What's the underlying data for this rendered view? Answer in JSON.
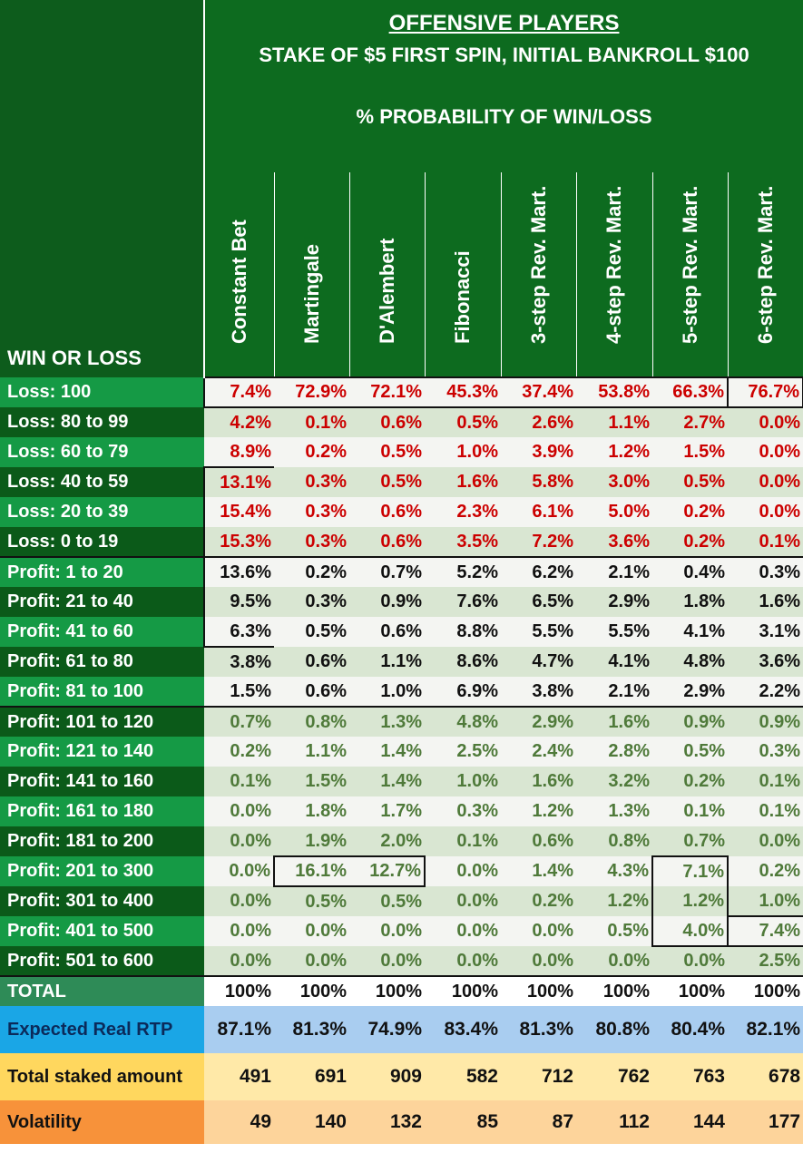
{
  "header": {
    "title": "OFFENSIVE PLAYERS",
    "subtitle": "STAKE OF $5 FIRST SPIN, INITIAL BANKROLL $100",
    "table_caption": "% PROBABILITY OF WIN/LOSS",
    "row_header": "WIN OR LOSS"
  },
  "columns": [
    "Constant Bet",
    "Martingale",
    "D'Alembert",
    "Fibonacci",
    "3-step Rev. Mart.",
    "4-step Rev. Mart.",
    "5-step Rev. Mart.",
    "6-step Rev. Mart."
  ],
  "rows": [
    {
      "label": "Loss: 100",
      "values": [
        "7.4%",
        "72.9%",
        "72.1%",
        "45.3%",
        "37.4%",
        "53.8%",
        "66.3%",
        "76.7%"
      ]
    },
    {
      "label": "Loss: 80 to 99",
      "values": [
        "4.2%",
        "0.1%",
        "0.6%",
        "0.5%",
        "2.6%",
        "1.1%",
        "2.7%",
        "0.0%"
      ]
    },
    {
      "label": "Loss: 60 to 79",
      "values": [
        "8.9%",
        "0.2%",
        "0.5%",
        "1.0%",
        "3.9%",
        "1.2%",
        "1.5%",
        "0.0%"
      ]
    },
    {
      "label": "Loss: 40 to 59",
      "values": [
        "13.1%",
        "0.3%",
        "0.5%",
        "1.6%",
        "5.8%",
        "3.0%",
        "0.5%",
        "0.0%"
      ]
    },
    {
      "label": "Loss: 20 to 39",
      "values": [
        "15.4%",
        "0.3%",
        "0.6%",
        "2.3%",
        "6.1%",
        "5.0%",
        "0.2%",
        "0.0%"
      ]
    },
    {
      "label": "Loss: 0 to 19",
      "values": [
        "15.3%",
        "0.3%",
        "0.6%",
        "3.5%",
        "7.2%",
        "3.6%",
        "0.2%",
        "0.1%"
      ]
    },
    {
      "label": "Profit: 1 to 20",
      "values": [
        "13.6%",
        "0.2%",
        "0.7%",
        "5.2%",
        "6.2%",
        "2.1%",
        "0.4%",
        "0.3%"
      ]
    },
    {
      "label": "Profit: 21 to 40",
      "values": [
        "9.5%",
        "0.3%",
        "0.9%",
        "7.6%",
        "6.5%",
        "2.9%",
        "1.8%",
        "1.6%"
      ]
    },
    {
      "label": "Profit: 41 to 60",
      "values": [
        "6.3%",
        "0.5%",
        "0.6%",
        "8.8%",
        "5.5%",
        "5.5%",
        "4.1%",
        "3.1%"
      ]
    },
    {
      "label": "Profit: 61 to 80",
      "values": [
        "3.8%",
        "0.6%",
        "1.1%",
        "8.6%",
        "4.7%",
        "4.1%",
        "4.8%",
        "3.6%"
      ]
    },
    {
      "label": "Profit: 81 to 100",
      "values": [
        "1.5%",
        "0.6%",
        "1.0%",
        "6.9%",
        "3.8%",
        "2.1%",
        "2.9%",
        "2.2%"
      ]
    },
    {
      "label": "Profit: 101 to 120",
      "values": [
        "0.7%",
        "0.8%",
        "1.3%",
        "4.8%",
        "2.9%",
        "1.6%",
        "0.9%",
        "0.9%"
      ]
    },
    {
      "label": "Profit: 121 to 140",
      "values": [
        "0.2%",
        "1.1%",
        "1.4%",
        "2.5%",
        "2.4%",
        "2.8%",
        "0.5%",
        "0.3%"
      ]
    },
    {
      "label": "Profit: 141 to 160",
      "values": [
        "0.1%",
        "1.5%",
        "1.4%",
        "1.0%",
        "1.6%",
        "3.2%",
        "0.2%",
        "0.1%"
      ]
    },
    {
      "label": "Profit: 161 to 180",
      "values": [
        "0.0%",
        "1.8%",
        "1.7%",
        "0.3%",
        "1.2%",
        "1.3%",
        "0.1%",
        "0.1%"
      ]
    },
    {
      "label": "Profit: 181 to 200",
      "values": [
        "0.0%",
        "1.9%",
        "2.0%",
        "0.1%",
        "0.6%",
        "0.8%",
        "0.7%",
        "0.0%"
      ]
    },
    {
      "label": "Profit: 201 to 300",
      "values": [
        "0.0%",
        "16.1%",
        "12.7%",
        "0.0%",
        "1.4%",
        "4.3%",
        "7.1%",
        "0.2%"
      ]
    },
    {
      "label": "Profit: 301 to 400",
      "values": [
        "0.0%",
        "0.5%",
        "0.5%",
        "0.0%",
        "0.2%",
        "1.2%",
        "1.2%",
        "1.0%"
      ]
    },
    {
      "label": "Profit: 401 to 500",
      "values": [
        "0.0%",
        "0.0%",
        "0.0%",
        "0.0%",
        "0.0%",
        "0.5%",
        "4.0%",
        "7.4%"
      ]
    },
    {
      "label": "Profit: 501 to 600",
      "values": [
        "0.0%",
        "0.0%",
        "0.0%",
        "0.0%",
        "0.0%",
        "0.0%",
        "0.0%",
        "2.5%"
      ]
    }
  ],
  "summary": {
    "total": {
      "label": "TOTAL",
      "values": [
        "100%",
        "100%",
        "100%",
        "100%",
        "100%",
        "100%",
        "100%",
        "100%"
      ]
    },
    "rtp": {
      "label": "Expected Real RTP",
      "values": [
        "87.1%",
        "81.3%",
        "74.9%",
        "83.4%",
        "81.3%",
        "80.8%",
        "80.4%",
        "82.1%"
      ]
    },
    "staked": {
      "label": "Total staked amount",
      "values": [
        "491",
        "691",
        "909",
        "582",
        "712",
        "762",
        "763",
        "678"
      ]
    },
    "volatility": {
      "label": "Volatility",
      "values": [
        "49",
        "140",
        "132",
        "85",
        "87",
        "112",
        "144",
        "177"
      ]
    }
  },
  "colors": {
    "loss_text": "#cc0000",
    "profit_low_text": "#111111",
    "profit_high_text": "#4f7a3a",
    "header_green": "#0d6b1f",
    "rtp_blue": "#1aa6e6",
    "stake_yellow": "#ffd75e",
    "volatility_orange": "#f7923a"
  }
}
